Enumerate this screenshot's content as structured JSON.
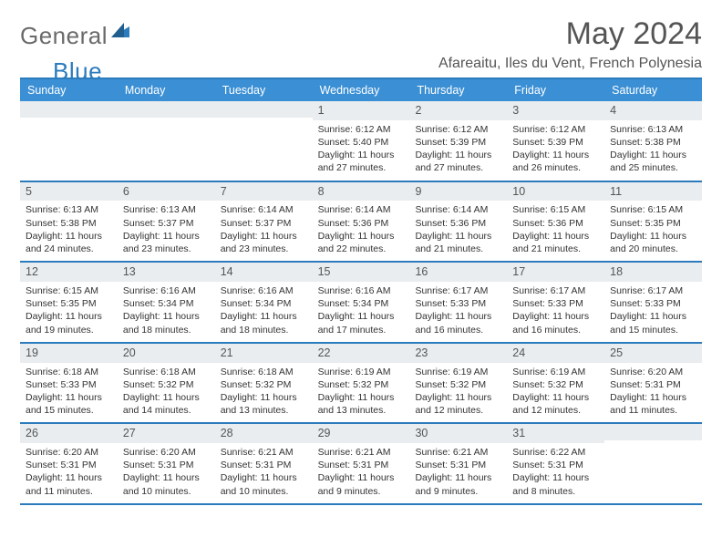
{
  "logo": {
    "general": "General",
    "blue": "Blue"
  },
  "title": "May 2024",
  "location": "Afareaitu, Iles du Vent, French Polynesia",
  "colors": {
    "header_bar": "#3b8fd4",
    "border": "#2b7bbd",
    "daynum_bg": "#e9edef",
    "text": "#333333",
    "title_text": "#555555"
  },
  "dow": [
    "Sunday",
    "Monday",
    "Tuesday",
    "Wednesday",
    "Thursday",
    "Friday",
    "Saturday"
  ],
  "weeks": [
    [
      null,
      null,
      null,
      {
        "n": "1",
        "sr": "6:12 AM",
        "ss": "5:40 PM",
        "dl": "11 hours and 27 minutes."
      },
      {
        "n": "2",
        "sr": "6:12 AM",
        "ss": "5:39 PM",
        "dl": "11 hours and 27 minutes."
      },
      {
        "n": "3",
        "sr": "6:12 AM",
        "ss": "5:39 PM",
        "dl": "11 hours and 26 minutes."
      },
      {
        "n": "4",
        "sr": "6:13 AM",
        "ss": "5:38 PM",
        "dl": "11 hours and 25 minutes."
      }
    ],
    [
      {
        "n": "5",
        "sr": "6:13 AM",
        "ss": "5:38 PM",
        "dl": "11 hours and 24 minutes."
      },
      {
        "n": "6",
        "sr": "6:13 AM",
        "ss": "5:37 PM",
        "dl": "11 hours and 23 minutes."
      },
      {
        "n": "7",
        "sr": "6:14 AM",
        "ss": "5:37 PM",
        "dl": "11 hours and 23 minutes."
      },
      {
        "n": "8",
        "sr": "6:14 AM",
        "ss": "5:36 PM",
        "dl": "11 hours and 22 minutes."
      },
      {
        "n": "9",
        "sr": "6:14 AM",
        "ss": "5:36 PM",
        "dl": "11 hours and 21 minutes."
      },
      {
        "n": "10",
        "sr": "6:15 AM",
        "ss": "5:36 PM",
        "dl": "11 hours and 21 minutes."
      },
      {
        "n": "11",
        "sr": "6:15 AM",
        "ss": "5:35 PM",
        "dl": "11 hours and 20 minutes."
      }
    ],
    [
      {
        "n": "12",
        "sr": "6:15 AM",
        "ss": "5:35 PM",
        "dl": "11 hours and 19 minutes."
      },
      {
        "n": "13",
        "sr": "6:16 AM",
        "ss": "5:34 PM",
        "dl": "11 hours and 18 minutes."
      },
      {
        "n": "14",
        "sr": "6:16 AM",
        "ss": "5:34 PM",
        "dl": "11 hours and 18 minutes."
      },
      {
        "n": "15",
        "sr": "6:16 AM",
        "ss": "5:34 PM",
        "dl": "11 hours and 17 minutes."
      },
      {
        "n": "16",
        "sr": "6:17 AM",
        "ss": "5:33 PM",
        "dl": "11 hours and 16 minutes."
      },
      {
        "n": "17",
        "sr": "6:17 AM",
        "ss": "5:33 PM",
        "dl": "11 hours and 16 minutes."
      },
      {
        "n": "18",
        "sr": "6:17 AM",
        "ss": "5:33 PM",
        "dl": "11 hours and 15 minutes."
      }
    ],
    [
      {
        "n": "19",
        "sr": "6:18 AM",
        "ss": "5:33 PM",
        "dl": "11 hours and 15 minutes."
      },
      {
        "n": "20",
        "sr": "6:18 AM",
        "ss": "5:32 PM",
        "dl": "11 hours and 14 minutes."
      },
      {
        "n": "21",
        "sr": "6:18 AM",
        "ss": "5:32 PM",
        "dl": "11 hours and 13 minutes."
      },
      {
        "n": "22",
        "sr": "6:19 AM",
        "ss": "5:32 PM",
        "dl": "11 hours and 13 minutes."
      },
      {
        "n": "23",
        "sr": "6:19 AM",
        "ss": "5:32 PM",
        "dl": "11 hours and 12 minutes."
      },
      {
        "n": "24",
        "sr": "6:19 AM",
        "ss": "5:32 PM",
        "dl": "11 hours and 12 minutes."
      },
      {
        "n": "25",
        "sr": "6:20 AM",
        "ss": "5:31 PM",
        "dl": "11 hours and 11 minutes."
      }
    ],
    [
      {
        "n": "26",
        "sr": "6:20 AM",
        "ss": "5:31 PM",
        "dl": "11 hours and 11 minutes."
      },
      {
        "n": "27",
        "sr": "6:20 AM",
        "ss": "5:31 PM",
        "dl": "11 hours and 10 minutes."
      },
      {
        "n": "28",
        "sr": "6:21 AM",
        "ss": "5:31 PM",
        "dl": "11 hours and 10 minutes."
      },
      {
        "n": "29",
        "sr": "6:21 AM",
        "ss": "5:31 PM",
        "dl": "11 hours and 9 minutes."
      },
      {
        "n": "30",
        "sr": "6:21 AM",
        "ss": "5:31 PM",
        "dl": "11 hours and 9 minutes."
      },
      {
        "n": "31",
        "sr": "6:22 AM",
        "ss": "5:31 PM",
        "dl": "11 hours and 8 minutes."
      },
      null
    ]
  ],
  "labels": {
    "sunrise": "Sunrise: ",
    "sunset": "Sunset: ",
    "daylight": "Daylight: "
  }
}
